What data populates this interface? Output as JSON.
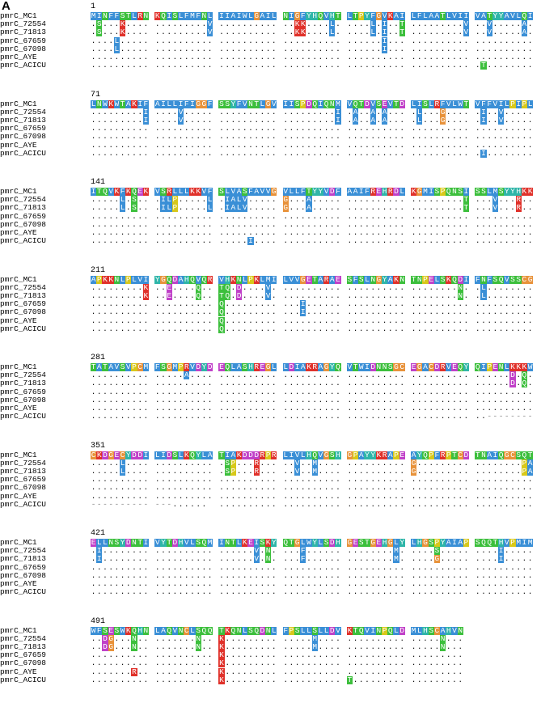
{
  "panel_label": "A",
  "sequence_names": [
    "pmrC_MC1",
    "pmrC_72554",
    "pmrC_71813",
    "pmrC_67659",
    "pmrC_67098",
    "pmrC_AYE",
    "pmrC_ACICU"
  ],
  "colors": {
    "hydrophobic": "#3a8fd6",
    "polar": "#3cbf3c",
    "positive": "#e0312a",
    "negative": "#c040c8",
    "glycine": "#e8923a",
    "proline": "#d8c81a",
    "cysteine": "#e8923a",
    "aromatic": "#2fb5a8"
  },
  "blocks": [
    {
      "start": "1",
      "rows": [
        "MINFFSTLRN KQISLFMFNL IIAIWLGAIL NIGFYHQVHT LTPYFGVKAI LFLAATLVII VATYYAVLQI",
        ".S...K.... .........V .......... ..KK....L. ....L.I..T .........V ..V.....A.",
        ".S...K.... .........V .......... ..KK....L. ....L.I..T .........V ..V.....A.",
        "....L..... .......... .......... .......... ......I... .......... ..........",
        "....L..... .......... .......... .......... ......I... .......... ..........",
        ".......... .......... .......... .......... .......... .......... ..........",
        ".......... .......... .......... .......... .......... .......... .T........"
      ]
    },
    {
      "start": "71",
      "rows": [
        "LNWKWTAKIF AILLIFIGGF SSYFVNTLGV IISPDQIQNM VQTDVSEVTD LISLRFVLWT VFFVILPIPL",
        ".........I ....V..... .......... .........I .A..A.A... .L...G.... .I..V.....",
        ".........I ....V..... .......... .........I .A..A.A... .L...G.... .I..V.....",
        ".......... .......... .......... .......... .......... .......... ..........",
        ".......... .......... .......... .......... .......... .......... ..........",
        ".......... .......... .......... .......... .......... .......... ..........",
        ".......... .......... .......... .......... .......... .......... .I........"
      ]
    },
    {
      "start": "141",
      "rows": [
        "ITQVKFKQEK VSRLLLKKVF SLVASFAVVG VLLFTYYVDF AAIFREHRDL KGMISPQNSI SSLMSYYHKK",
        ".....L.S.. .ILP.....L .IALV..... G...A..... .......... .........T ...V...R..",
        ".....L.S.. .ILP.....L .IALV..... G...A..... .......... .........T ...V...R..",
        ".......... .......... .......... .......... .......... .......... ..........",
        ".......... .......... .......... .......... .......... .......... ..........",
        ".......... .......... .......... .......... .......... .......... ..........",
        ".......... .......... .....I.... .......... .......... .......... .........."
      ]
    },
    {
      "start": "211",
      "rows": [
        "APKKNLPLVI YGQDAHQVQR VHKNLPKLMI LVVGETARAE SFSLNGYAKN TNPELSKQDI FNFSQVSSCG",
        ".........K ..E....Q.. TQ.D....V. .......... .......... ........N. .L........",
        ".........K ..E....Q.. TQ.D....V. .......... .......... ........N. .L........",
        ".......... .......... Q......... ...I...... .......... .......... ..........",
        ".......... .......... Q......... ...I...... .......... .......... ..........",
        ".......... .......... Q......... .......... .......... .......... ..........",
        ".......... .......... Q......... .......... .......... .......... .........."
      ]
    },
    {
      "start": "281",
      "rows": [
        "TATAVSVPCM FSGMPRVDYD EQLASHREGL LDIAKRAGYQ VTWIDNNSGC EGACDRVEQY QIPENLKKKW",
        ".......... .....A.... .......... .......... .......... .......... ......D.Q.",
        ".......... .......... .......... .......... .......... .......... ......D.Q.",
        ".......... .......... .......... .......... .......... .......... ..........",
        ".......... .......... .......... .......... .......... .......... ..........",
        ".......... .......... .......... .......... .......... .......... ..........",
        ".......... .......... .......... .......... .......... .......... ..--------"
      ]
    },
    {
      "start": "351",
      "rows": [
        "CKDGECYDDI LIDSLKQYLA TIAKDDDRPR LIVLHQVGSH GPAYYKRAPE AYQPFRPTCD TNAIQGCSQT",
        ".....L.... .......... .SP...R... ..V..M.... .......... G......... ........PA",
        ".....L.... .......... .SP...R... ..V..M.... .......... G......... ........PA",
        ".......... .......... .......... .......... .......... .......... ..........",
        ".......... .......... .......... .......... .......... .......... ..........",
        ".......... .......... .......... .......... .......... .......... ..........",
        "---------- ---......  .......... .......... .......... .......... .........."
      ]
    },
    {
      "start": "421",
      "rows": [
        "ELLNSYDNTI VYTDHVLSQM INTLKEISKY QTGLWYLSDH GESTGEHGLY LHGSPYAIAP SQQTHVPMIM",
        ".I........ .......... ......V.N. ...F...... ........M. ....S..... ....I.....",
        ".I........ .......... ......V.N. ...F...... ........M. ....G..... ....I.....",
        ".......... .......... .......... .......... .......... .......... ..........",
        ".......... .......... .......... .......... .......... .......... ..........",
        ".......... .......... .......... .......... .......... .......... ..........",
        ".......... .......... .......... .......... .......... .......... .........."
      ]
    },
    {
      "start": "491",
      "rows": [
        "WFSESWKQHN LAQVNCLSQQ TKQNLSQDNL FPSLLSLLDV KTQVINPQLD MLHSCAHVN",
        "..DG...N.. .......N.. K......... .....M.... .......... .....N...",
        "..DG...N.. .......N.. K......... .....M.... .......... .....N...",
        ".......... .......... K......... .......... .......... .........",
        ".......... .......... K......... .......... .......... .........",
        ".......R.. .......... K......... .......... .......... .........",
        ".......... .......... K......... .......... T......... ........."
      ]
    }
  ]
}
